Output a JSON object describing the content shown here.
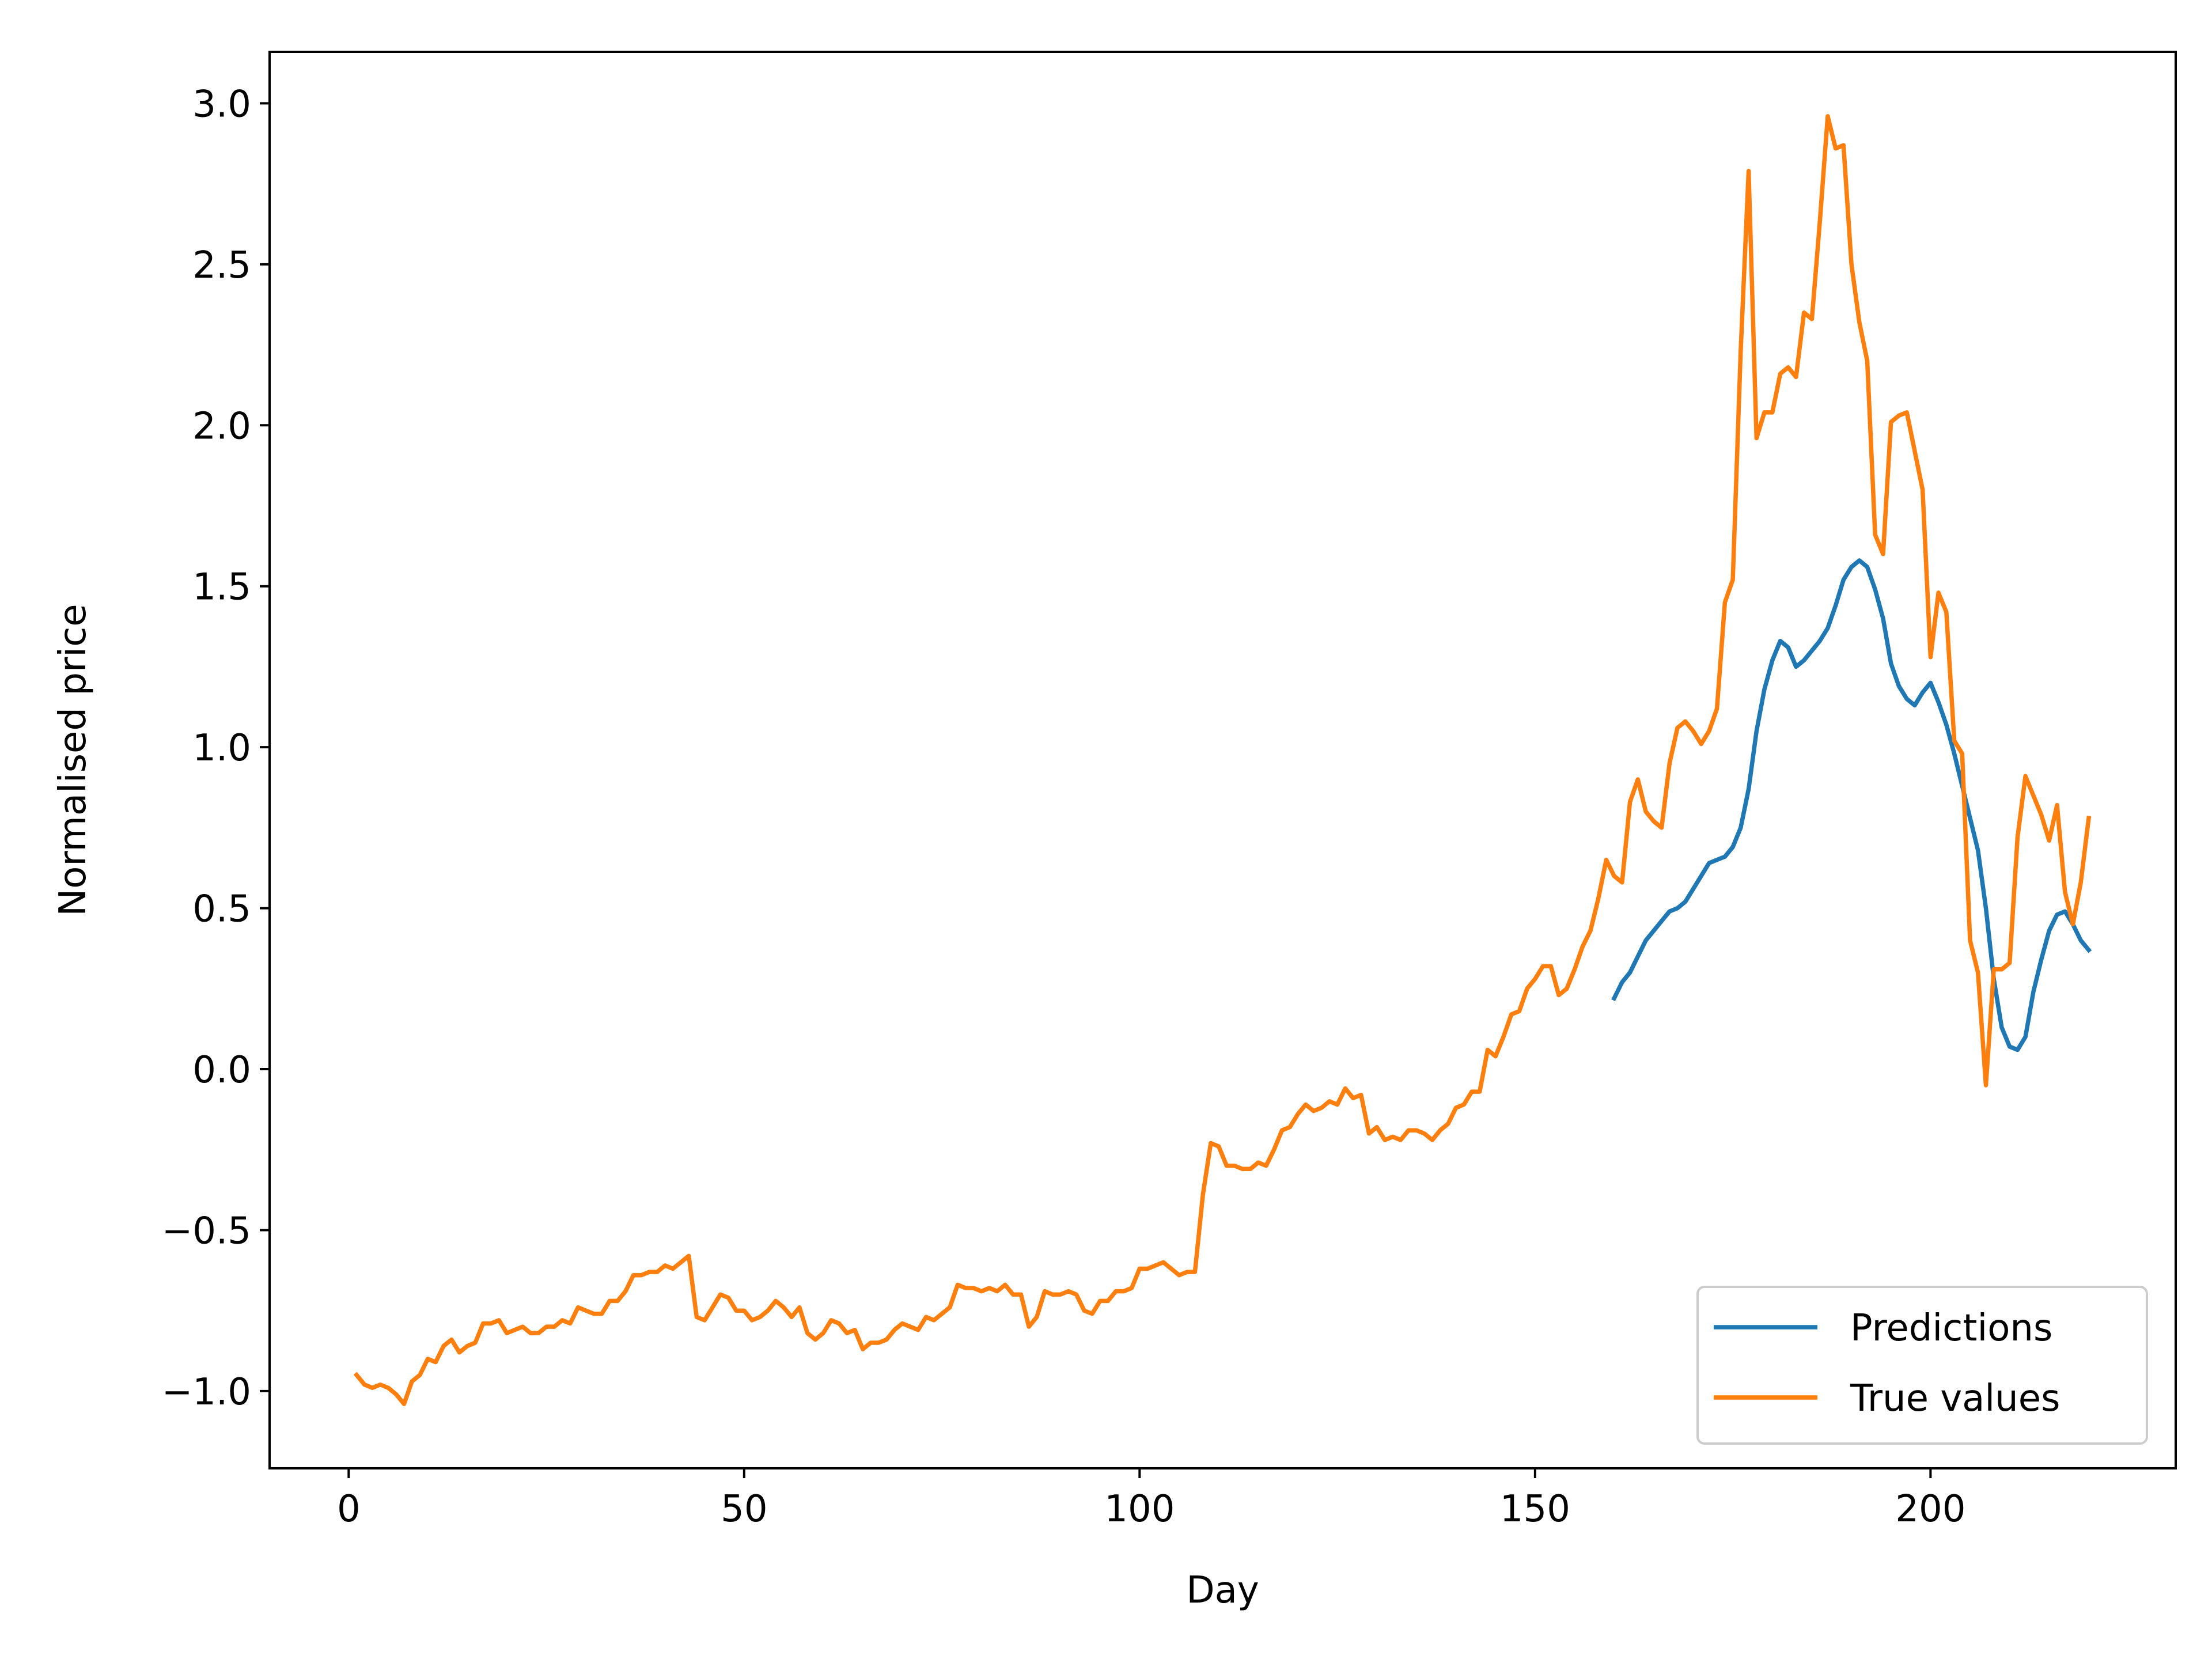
{
  "chart_data": {
    "type": "line",
    "title": "",
    "xlabel": "Day",
    "ylabel": "Normalised price",
    "xlim": [
      -10,
      231
    ],
    "ylim": [
      -1.24,
      3.16
    ],
    "xticks": [
      0,
      50,
      100,
      150,
      200
    ],
    "yticks": [
      -1.0,
      -0.5,
      0.0,
      0.5,
      1.0,
      1.5,
      2.0,
      2.5,
      3.0
    ],
    "xtick_labels": [
      "0",
      "50",
      "100",
      "150",
      "200"
    ],
    "ytick_labels": [
      "−1.0",
      "−0.5",
      "0.0",
      "0.5",
      "1.0",
      "1.5",
      "2.0",
      "2.5",
      "3.0"
    ],
    "grid": false,
    "legend_position": "lower right",
    "series": [
      {
        "name": "Predictions",
        "color": "#1f77b4",
        "x": [
          160,
          161,
          162,
          163,
          164,
          165,
          166,
          167,
          168,
          169,
          170,
          171,
          172,
          173,
          174,
          175,
          176,
          177,
          178,
          179,
          180,
          181,
          182,
          183,
          184,
          185,
          186,
          187,
          188,
          189,
          190,
          191,
          192,
          193,
          194,
          195,
          196,
          197,
          198,
          199,
          200,
          201,
          202,
          203,
          204,
          205,
          206,
          207,
          208,
          209,
          210,
          211,
          212,
          213,
          214,
          215,
          216,
          217,
          218,
          219,
          220
        ],
        "y": [
          0.22,
          0.27,
          0.3,
          0.35,
          0.4,
          0.43,
          0.46,
          0.49,
          0.5,
          0.52,
          0.56,
          0.6,
          0.64,
          0.65,
          0.66,
          0.69,
          0.75,
          0.87,
          1.05,
          1.18,
          1.27,
          1.33,
          1.31,
          1.25,
          1.27,
          1.3,
          1.33,
          1.37,
          1.44,
          1.52,
          1.56,
          1.58,
          1.56,
          1.49,
          1.4,
          1.26,
          1.19,
          1.15,
          1.13,
          1.17,
          1.2,
          1.14,
          1.07,
          0.98,
          0.88,
          0.78,
          0.68,
          0.5,
          0.28,
          0.13,
          0.07,
          0.06,
          0.1,
          0.24,
          0.34,
          0.43,
          0.48,
          0.49,
          0.45,
          0.4,
          0.37
        ]
      },
      {
        "name": "True values",
        "color": "#ff7f0e",
        "x": [
          1,
          2,
          3,
          4,
          5,
          6,
          7,
          8,
          9,
          10,
          11,
          12,
          13,
          14,
          15,
          16,
          17,
          18,
          19,
          20,
          21,
          22,
          23,
          24,
          25,
          26,
          27,
          28,
          29,
          30,
          31,
          32,
          33,
          34,
          35,
          36,
          37,
          38,
          39,
          40,
          41,
          42,
          43,
          44,
          45,
          46,
          47,
          48,
          49,
          50,
          51,
          52,
          53,
          54,
          55,
          56,
          57,
          58,
          59,
          60,
          61,
          62,
          63,
          64,
          65,
          66,
          67,
          68,
          69,
          70,
          71,
          72,
          73,
          74,
          75,
          76,
          77,
          78,
          79,
          80,
          81,
          82,
          83,
          84,
          85,
          86,
          87,
          88,
          89,
          90,
          91,
          92,
          93,
          94,
          95,
          96,
          97,
          98,
          99,
          100,
          101,
          102,
          103,
          104,
          105,
          106,
          107,
          108,
          109,
          110,
          111,
          112,
          113,
          114,
          115,
          116,
          117,
          118,
          119,
          120,
          121,
          122,
          123,
          124,
          125,
          126,
          127,
          128,
          129,
          130,
          131,
          132,
          133,
          134,
          135,
          136,
          137,
          138,
          139,
          140,
          141,
          142,
          143,
          144,
          145,
          146,
          147,
          148,
          149,
          150,
          151,
          152,
          153,
          154,
          155,
          156,
          157,
          158,
          159,
          160,
          161,
          162,
          163,
          164,
          165,
          166,
          167,
          168,
          169,
          170,
          171,
          172,
          173,
          174,
          175,
          176,
          177,
          178,
          179,
          180,
          181,
          182,
          183,
          184,
          185,
          186,
          187,
          188,
          189,
          190,
          191,
          192,
          193,
          194,
          195,
          196,
          197,
          198,
          199,
          200,
          201,
          202,
          203,
          204,
          205,
          206,
          207,
          208,
          209,
          210,
          211,
          212,
          213,
          214,
          215,
          216,
          217,
          218,
          219,
          220
        ],
        "y": [
          -0.95,
          -0.98,
          -0.99,
          -0.98,
          -0.99,
          -1.01,
          -1.04,
          -0.97,
          -0.95,
          -0.9,
          -0.91,
          -0.86,
          -0.84,
          -0.88,
          -0.86,
          -0.85,
          -0.79,
          -0.79,
          -0.78,
          -0.82,
          -0.81,
          -0.8,
          -0.82,
          -0.82,
          -0.8,
          -0.8,
          -0.78,
          -0.79,
          -0.74,
          -0.75,
          -0.76,
          -0.76,
          -0.72,
          -0.72,
          -0.69,
          -0.64,
          -0.64,
          -0.63,
          -0.63,
          -0.61,
          -0.62,
          -0.6,
          -0.58,
          -0.77,
          -0.78,
          -0.74,
          -0.7,
          -0.71,
          -0.75,
          -0.75,
          -0.78,
          -0.77,
          -0.75,
          -0.72,
          -0.74,
          -0.77,
          -0.74,
          -0.82,
          -0.84,
          -0.82,
          -0.78,
          -0.79,
          -0.82,
          -0.81,
          -0.87,
          -0.85,
          -0.85,
          -0.84,
          -0.81,
          -0.79,
          -0.8,
          -0.81,
          -0.77,
          -0.78,
          -0.76,
          -0.74,
          -0.67,
          -0.68,
          -0.68,
          -0.69,
          -0.68,
          -0.69,
          -0.67,
          -0.7,
          -0.7,
          -0.8,
          -0.77,
          -0.69,
          -0.7,
          -0.7,
          -0.69,
          -0.7,
          -0.75,
          -0.76,
          -0.72,
          -0.72,
          -0.69,
          -0.69,
          -0.68,
          -0.62,
          -0.62,
          -0.61,
          -0.6,
          -0.62,
          -0.64,
          -0.63,
          -0.63,
          -0.39,
          -0.23,
          -0.24,
          -0.3,
          -0.3,
          -0.31,
          -0.31,
          -0.29,
          -0.3,
          -0.25,
          -0.19,
          -0.18,
          -0.14,
          -0.11,
          -0.13,
          -0.12,
          -0.1,
          -0.11,
          -0.06,
          -0.09,
          -0.08,
          -0.2,
          -0.18,
          -0.22,
          -0.21,
          -0.22,
          -0.19,
          -0.19,
          -0.2,
          -0.22,
          -0.19,
          -0.17,
          -0.12,
          -0.11,
          -0.07,
          -0.07,
          0.06,
          0.04,
          0.1,
          0.17,
          0.18,
          0.25,
          0.28,
          0.32,
          0.32,
          0.23,
          0.25,
          0.31,
          0.38,
          0.43,
          0.53,
          0.65,
          0.6,
          0.58,
          0.83,
          0.9,
          0.8,
          0.77,
          0.75,
          0.95,
          1.06,
          1.08,
          1.05,
          1.01,
          1.05,
          1.12,
          1.45,
          1.52,
          2.23,
          2.79,
          1.96,
          2.04,
          2.04,
          2.16,
          2.18,
          2.15,
          2.35,
          2.33,
          2.63,
          2.96,
          2.86,
          2.87,
          2.5,
          2.32,
          2.2,
          1.66,
          1.6,
          2.01,
          2.03,
          2.04,
          1.92,
          1.8,
          1.28,
          1.48,
          1.42,
          1.02,
          0.98,
          0.4,
          0.3,
          -0.05,
          0.31,
          0.31,
          0.33,
          0.72,
          0.91,
          0.85,
          0.79,
          0.71,
          0.82,
          0.55,
          0.45,
          0.58,
          0.78
        ]
      }
    ]
  }
}
